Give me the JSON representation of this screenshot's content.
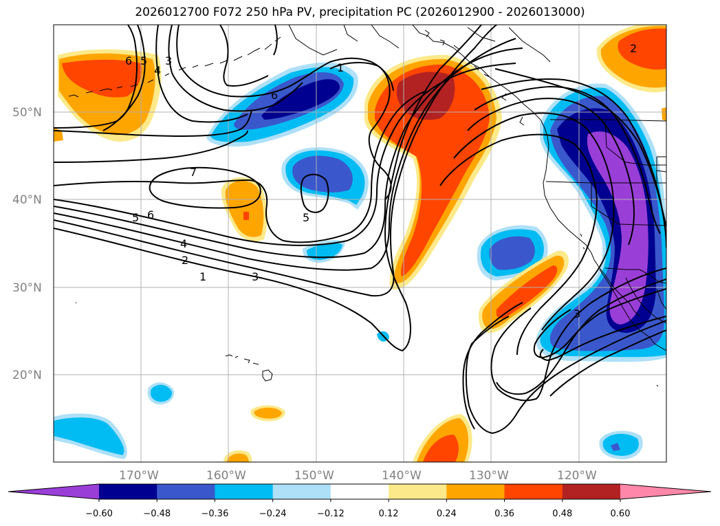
{
  "title": "2026012700 F072 250 hPa PV, precipitation PC (2026012900 - 2026013000)",
  "lat_labels": [
    "50°N",
    "40°N",
    "30°N",
    "20°N"
  ],
  "lon_labels": [
    "170°W",
    "160°W",
    "150°W",
    "140°W",
    "130°W",
    "120°W"
  ],
  "contour_labels": [
    "1",
    "2",
    "3",
    "4",
    "5",
    "6",
    "7",
    "5",
    "6",
    "3",
    "5",
    "3",
    "4",
    "1",
    "2",
    "6"
  ],
  "colorbar": {
    "tick_labels": [
      "−0.60",
      "−0.48",
      "−0.36",
      "−0.24",
      "−0.12",
      "0.12",
      "0.24",
      "0.36",
      "0.48",
      "0.60"
    ],
    "colors": [
      "#9a3ed8",
      "#000090",
      "#3a58cc",
      "#00bcf2",
      "#aee0f8",
      "#ffffff",
      "#fce98a",
      "#ffa500",
      "#ff4500",
      "#b22222",
      "#ff88aa"
    ]
  },
  "fill_colors": {
    "purple": "#9a3ed8",
    "navy": "#000090",
    "blue": "#3a58cc",
    "cyan": "#00bcf2",
    "lightblue": "#aee0f8",
    "yellow": "#fce98a",
    "orange": "#ffa500",
    "red": "#ff4500",
    "darkred": "#b22222"
  }
}
